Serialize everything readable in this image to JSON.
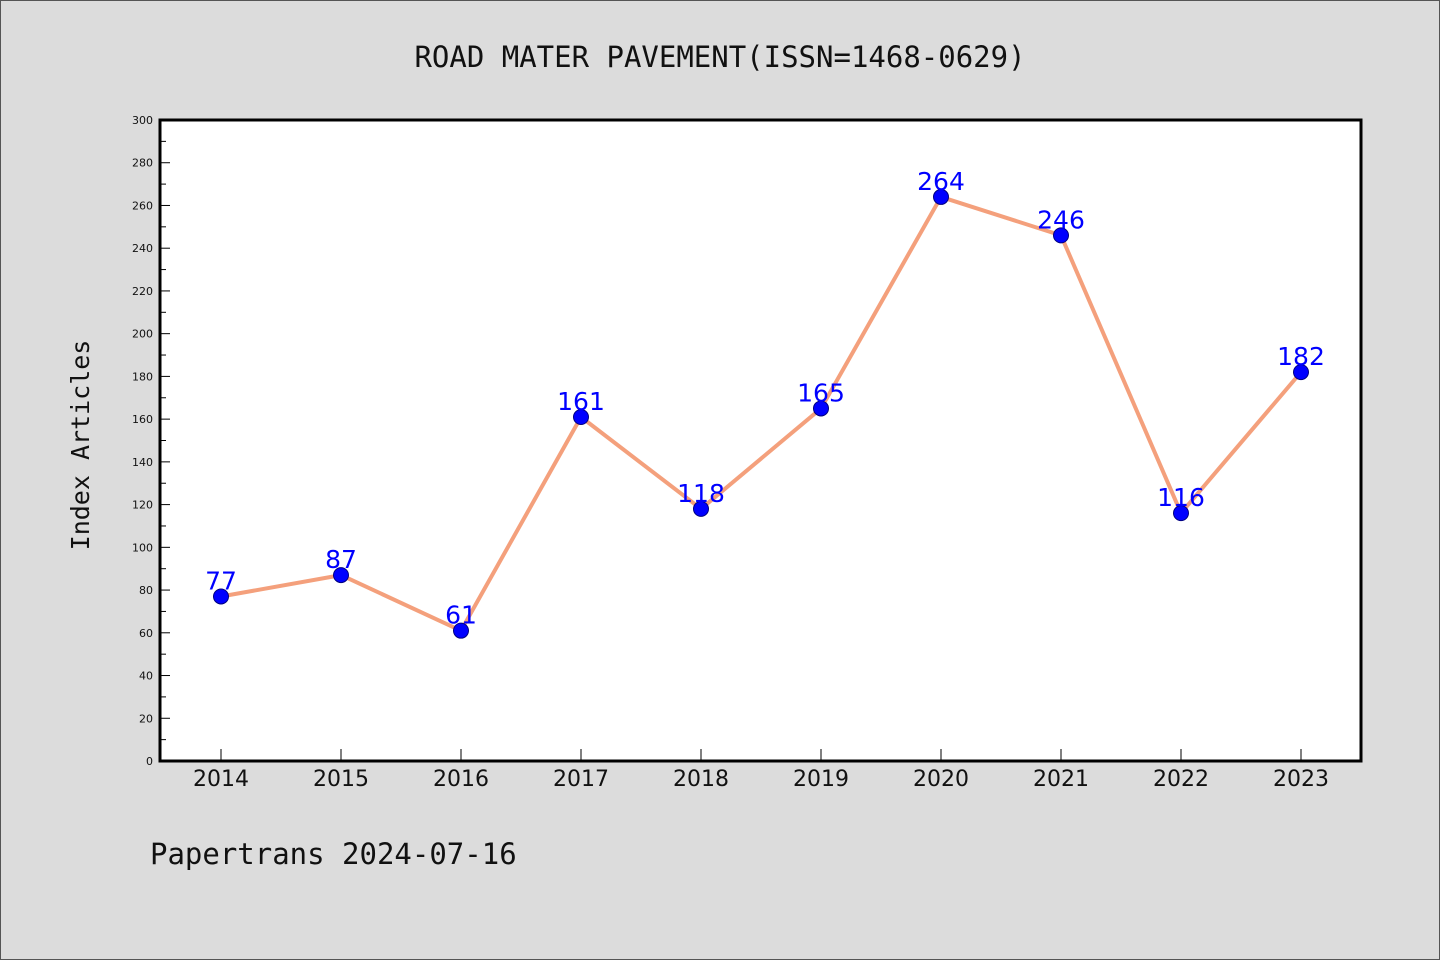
{
  "footer": {
    "text": "Papertrans 2024-07-16"
  },
  "colors": {
    "background": "#dcdcdc",
    "plot_background": "#ffffff",
    "line": "#f4a07c",
    "marker": "#0000ff",
    "marker_edge": "#000080",
    "data_label": "#0000ff"
  },
  "chart_data": {
    "type": "line",
    "title": "ROAD MATER PAVEMENT(ISSN=1468-0629)",
    "xlabel": "",
    "ylabel": "Index Articles",
    "categories": [
      "2014",
      "2015",
      "2016",
      "2017",
      "2018",
      "2019",
      "2020",
      "2021",
      "2022",
      "2023"
    ],
    "series": [
      {
        "values": [
          77,
          87,
          61,
          161,
          118,
          165,
          264,
          246,
          116,
          182
        ]
      }
    ],
    "data_labels": [
      "77",
      "87",
      "61",
      "161",
      "118",
      "165",
      "264",
      "246",
      "116",
      "182"
    ],
    "ylim": [
      0,
      300
    ],
    "yticks": [
      0,
      20,
      40,
      60,
      80,
      100,
      120,
      140,
      160,
      180,
      200,
      220,
      240,
      260,
      280,
      300
    ],
    "yticks_minor_step": 10,
    "grid": false,
    "legend": "none"
  }
}
